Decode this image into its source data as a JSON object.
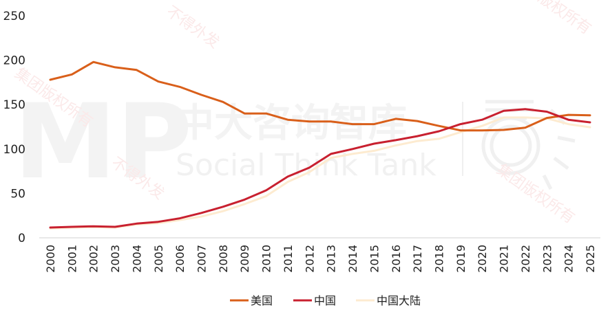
{
  "chart_data": {
    "type": "line",
    "title": "",
    "xlabel": "",
    "ylabel": "",
    "ylim": [
      0,
      250
    ],
    "yticks": [
      0,
      50,
      100,
      150,
      200,
      250
    ],
    "grid": false,
    "legend_position": "bottom",
    "categories": [
      "2000",
      "2001",
      "2002",
      "2003",
      "2004",
      "2005",
      "2006",
      "2007",
      "2008",
      "2009",
      "2010",
      "2011",
      "2012",
      "2013",
      "2014",
      "2015",
      "2016",
      "2017",
      "2018",
      "2019",
      "2020",
      "2021",
      "2022",
      "2023",
      "2024",
      "2025"
    ],
    "series": [
      {
        "name": "美国",
        "color": "#D95F1A",
        "values": [
          178,
          184,
          198,
          192,
          189,
          176,
          170,
          161,
          153,
          140,
          140,
          133,
          131,
          131,
          128,
          128,
          134,
          131.5,
          126,
          121,
          121,
          121.5,
          124,
          135,
          138.5,
          138
        ]
      },
      {
        "name": "中国",
        "color": "#C8202F",
        "values": [
          11.6,
          12.4,
          13,
          12.4,
          16,
          18,
          22,
          28,
          35,
          43,
          53.5,
          69,
          79,
          94.5,
          100,
          106,
          110,
          114.5,
          120,
          128,
          133,
          143,
          145,
          142,
          133,
          130
        ]
      },
      {
        "name": "中国大陆",
        "color": "#FDEBD0",
        "values": [
          10.5,
          11.5,
          12,
          11.5,
          15,
          16.5,
          20,
          24,
          30,
          38,
          47,
          63,
          74,
          90,
          94.5,
          98,
          104,
          109,
          111.5,
          119,
          126,
          135.5,
          135.5,
          134.5,
          128,
          124.5
        ]
      }
    ]
  },
  "watermark": {
    "logo": "MP",
    "name_cn": "中大咨询智库",
    "name_en": "Social Think Tank",
    "diagonal": [
      "集团版权所有",
      "不得外发",
      "版权所有",
      "不得外发"
    ]
  }
}
